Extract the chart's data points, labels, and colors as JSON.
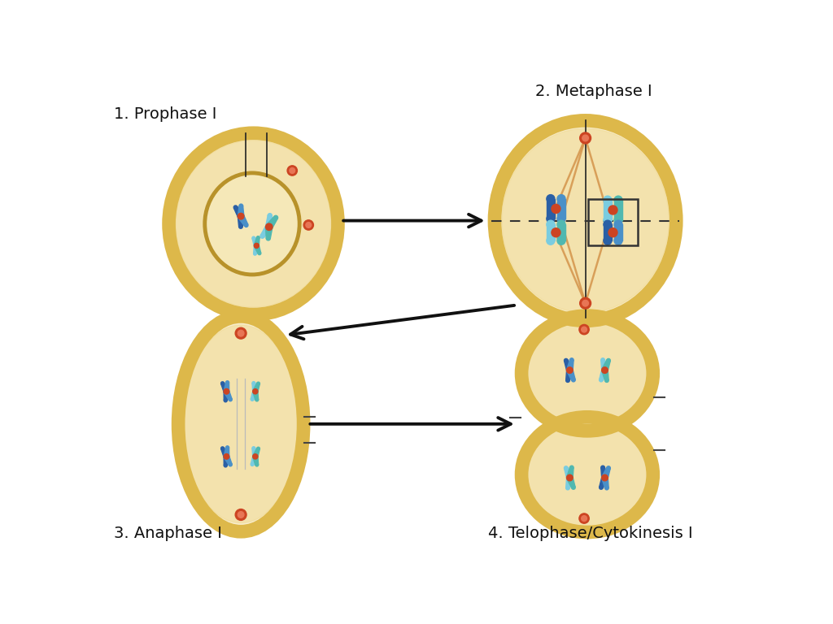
{
  "bg_color": "#ffffff",
  "labels": {
    "prophase": "1. Prophase I",
    "metaphase": "2. Metaphase I",
    "anaphase": "3. Anaphase I",
    "telophase": "4. Telophase/Cytokinesis I"
  },
  "label_fontsize": 14,
  "cell_outer": "#ddb84a",
  "cell_inner": "#f0d990",
  "cell_fill": "#f8edcc",
  "nucleus_ring": "#b8922a",
  "nucleus_fill": "#f5e8b8",
  "chr_dark": "#2a5fa5",
  "chr_mid": "#4a90c8",
  "chr_light": "#7acce0",
  "chr_teal": "#50b8b0",
  "spindle_color": "#d4944a",
  "centromere_color": "#cc4422",
  "arrow_color": "#111111"
}
